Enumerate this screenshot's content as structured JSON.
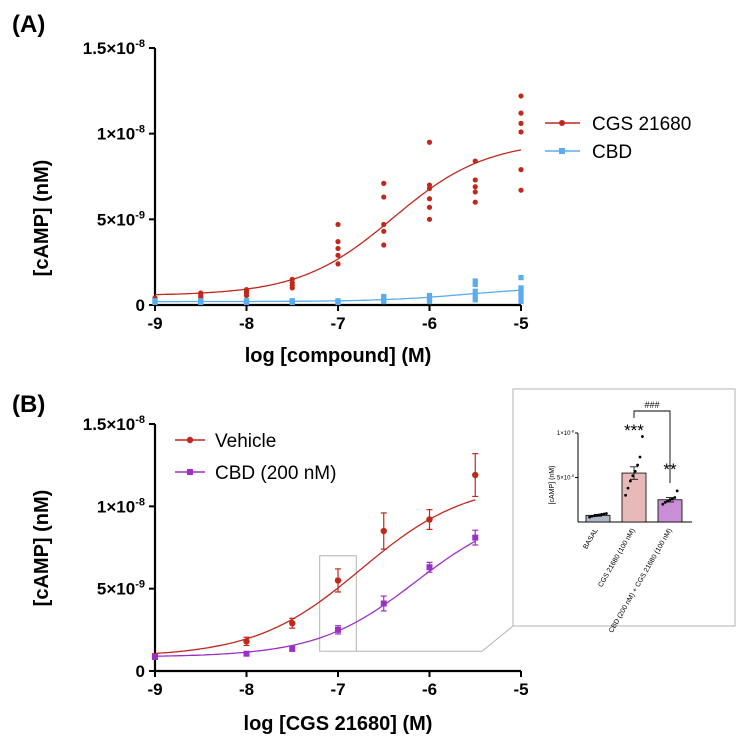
{
  "chart_data": [
    {
      "id": "A",
      "panel_label": "(A)",
      "type": "scatter",
      "xlabel": "log [compound] (M)",
      "ylabel": "[cAMP] (nM)",
      "xlim": [
        -9,
        -5
      ],
      "ylim": [
        0,
        1.5e-08
      ],
      "x_ticks": [
        "-9",
        "-8",
        "-7",
        "-6",
        "-5"
      ],
      "y_ticks": [
        {
          "value": 0,
          "mantissa": "0",
          "exp": ""
        },
        {
          "value": 5e-09,
          "mantissa": "5×10",
          "exp": "-9"
        },
        {
          "value": 1e-08,
          "mantissa": "1×10",
          "exp": "-8"
        },
        {
          "value": 1.5e-08,
          "mantissa": "1.5×10",
          "exp": "-8"
        }
      ],
      "legend_position": "right",
      "series": [
        {
          "name": "CGS 21680",
          "color": "#c0281c",
          "marker": "circle",
          "fit": {
            "bottom": 5.5e-10,
            "top": 9.6e-09,
            "logEC50": -6.4,
            "hill": 0.85
          },
          "points": [
            {
              "x": -9,
              "y": [
                3e-10,
                3.5e-10,
                4.2e-10
              ]
            },
            {
              "x": -8.5,
              "y": [
                4e-10,
                5e-10,
                6e-10,
                7e-10
              ]
            },
            {
              "x": -8,
              "y": [
                5.5e-10,
                7e-10,
                8e-10,
                9e-10
              ]
            },
            {
              "x": -7.5,
              "y": [
                1e-09,
                1.15e-09,
                1.3e-09,
                1.5e-09
              ]
            },
            {
              "x": -7,
              "y": [
                2.4e-09,
                2.9e-09,
                3.3e-09,
                3.7e-09,
                4.7e-09
              ]
            },
            {
              "x": -6.5,
              "y": [
                3.5e-09,
                4.3e-09,
                4.7e-09,
                6.3e-09,
                7.1e-09
              ]
            },
            {
              "x": -6,
              "y": [
                5e-09,
                5.7e-09,
                6.2e-09,
                6.8e-09,
                7e-09,
                9.5e-09
              ]
            },
            {
              "x": -5.5,
              "y": [
                6e-09,
                6.6e-09,
                6.9e-09,
                7.3e-09,
                8.4e-09
              ]
            },
            {
              "x": -5,
              "y": [
                6.7e-09,
                7.9e-09,
                1.01e-08,
                1.06e-08,
                1.12e-08,
                1.22e-08
              ]
            }
          ]
        },
        {
          "name": "CBD",
          "color": "#5aabef",
          "marker": "square",
          "fit": {
            "bottom": 2e-10,
            "top": 1.05e-09,
            "logEC50": -5.6,
            "hill": 0.9
          },
          "points": [
            {
              "x": -9,
              "y": [
                1.5e-10,
                2e-10,
                2.5e-10
              ]
            },
            {
              "x": -8.5,
              "y": [
                1.5e-10,
                2e-10,
                2.5e-10
              ]
            },
            {
              "x": -8,
              "y": [
                1.5e-10,
                2e-10,
                2.5e-10
              ]
            },
            {
              "x": -7.5,
              "y": [
                1.5e-10,
                2e-10,
                2.5e-10
              ]
            },
            {
              "x": -7,
              "y": [
                1.5e-10,
                2e-10,
                2.5e-10
              ]
            },
            {
              "x": -6.5,
              "y": [
                2e-10,
                3e-10,
                4e-10,
                5e-10
              ]
            },
            {
              "x": -6,
              "y": [
                2e-10,
                3e-10,
                4e-10,
                5.5e-10
              ]
            },
            {
              "x": -5.5,
              "y": [
                3e-10,
                5e-10,
                8e-10,
                1.2e-09,
                1.4e-09
              ]
            },
            {
              "x": -5,
              "y": [
                2e-10,
                4e-10,
                6e-10,
                8e-10,
                1e-09,
                1.6e-09
              ]
            }
          ]
        }
      ]
    },
    {
      "id": "B",
      "panel_label": "(B)",
      "type": "line",
      "xlabel": "log [CGS 21680] (M)",
      "ylabel": "[cAMP] (nM)",
      "xlim": [
        -9,
        -5
      ],
      "ylim": [
        0,
        1.5e-08
      ],
      "x_ticks": [
        "-9",
        "-8",
        "-7",
        "-6",
        "-5"
      ],
      "y_ticks": [
        {
          "value": 0,
          "mantissa": "0",
          "exp": ""
        },
        {
          "value": 5e-09,
          "mantissa": "5×10",
          "exp": "-9"
        },
        {
          "value": 1e-08,
          "mantissa": "1×10",
          "exp": "-8"
        },
        {
          "value": 1.5e-08,
          "mantissa": "1.5×10",
          "exp": "-8"
        }
      ],
      "legend_position": "top-left",
      "zoom_box": {
        "x": [
          -7.2,
          -6.8
        ],
        "y": [
          1.2e-09,
          7e-09
        ]
      },
      "series": [
        {
          "name": "Vehicle",
          "color": "#c0281c",
          "marker": "circle",
          "fit": {
            "bottom": 8.5e-10,
            "top": 1.15e-08,
            "logEC50": -6.75,
            "hill": 0.75
          },
          "x": [
            -9,
            -8,
            -7.5,
            -7,
            -6.5,
            -6,
            -5.5
          ],
          "y": [
            9e-10,
            1.8e-09,
            2.9e-09,
            5.5e-09,
            8.5e-09,
            9.2e-09,
            1.19e-08
          ],
          "err": [
            1.5e-10,
            2.5e-10,
            3e-10,
            7e-10,
            1.1e-09,
            6e-10,
            1.3e-09
          ]
        },
        {
          "name": "CBD (200 nM)",
          "color": "#9b30c7",
          "marker": "square",
          "fit": {
            "bottom": 8.5e-10,
            "top": 1e-08,
            "logEC50": -6.15,
            "hill": 0.8
          },
          "x": [
            -9,
            -8,
            -7.5,
            -7,
            -6.5,
            -6,
            -5.5
          ],
          "y": [
            8.5e-10,
            1.05e-09,
            1.35e-09,
            2.5e-09,
            4.1e-09,
            6.3e-09,
            8.1e-09
          ],
          "err": [
            1e-10,
            1e-10,
            1.5e-10,
            2.5e-10,
            4.5e-10,
            3e-10,
            4.5e-10
          ]
        }
      ]
    },
    {
      "id": "inset",
      "type": "bar",
      "ylabel": "[cAMP] (nM)",
      "ylim": [
        0,
        1e-08
      ],
      "y_ticks": [
        {
          "value": 5e-09,
          "mantissa": "5×10",
          "exp": "-9"
        },
        {
          "value": 1e-08,
          "mantissa": "1×10",
          "exp": "-8"
        }
      ],
      "categories": [
        "BASAL",
        "CGS 21680 (100 nM)",
        "CBD (200 nM) + CGS 21680 (100 nM)"
      ],
      "values": [
        7.5e-10,
        5.5e-09,
        2.5e-09
      ],
      "err": [
        1e-10,
        7e-10,
        2.5e-10
      ],
      "colors": [
        "#aeb9c8",
        "#e8b9b9",
        "#c98fd6"
      ],
      "points": [
        [
          5.5e-10,
          6.5e-10,
          7e-10,
          7.5e-10,
          8e-10,
          8.5e-10,
          9e-10,
          9.5e-10
        ],
        [
          3e-09,
          3.8e-09,
          4.6e-09,
          5.2e-09,
          5.7e-09,
          6.4e-09,
          7.3e-09,
          9.6e-09
        ],
        [
          2e-09,
          2.2e-09,
          2.35e-09,
          2.5e-09,
          2.6e-09,
          2.75e-09,
          3.5e-09
        ]
      ],
      "annotations": [
        "***",
        "**"
      ],
      "bracket_label": "###"
    }
  ]
}
